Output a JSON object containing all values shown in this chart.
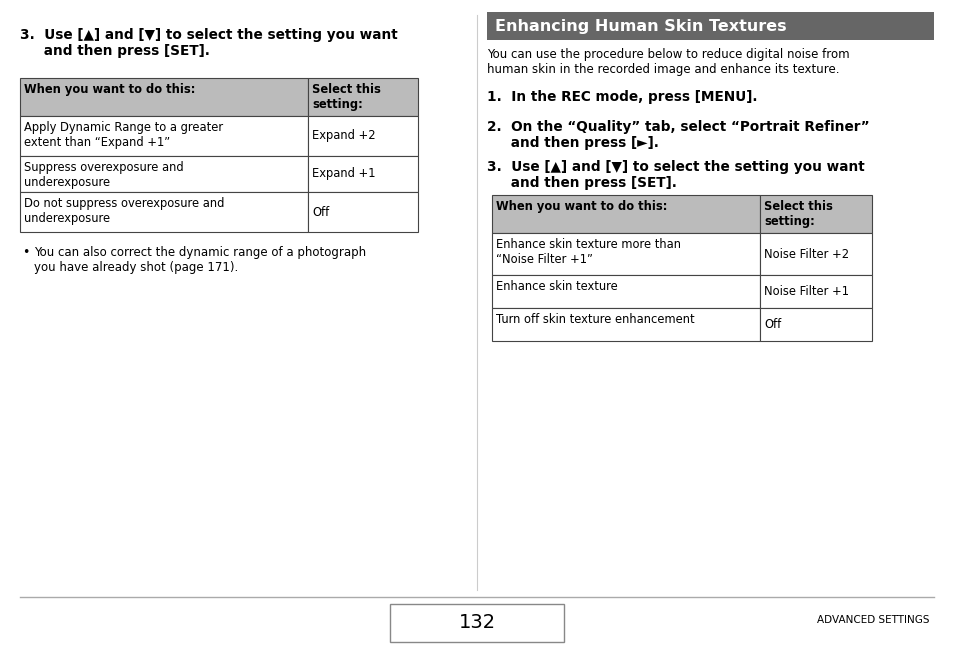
{
  "bg_color": "#ffffff",
  "header_bg": "#666666",
  "header_text_color": "#ffffff",
  "table_header_bg": "#bbbbbb",
  "table_border_color": "#444444",
  "text_color": "#000000",
  "divider_color": "#cccccc",
  "footer_line_color": "#aaaaaa",
  "left_step3_line1": "3.  Use [▲] and [▼] to select the setting you want",
  "left_step3_line2": "     and then press [SET].",
  "left_table_header_col1": "When you want to do this:",
  "left_table_header_col2": "Select this\nsetting:",
  "left_table_rows": [
    [
      "Apply Dynamic Range to a greater\nextent than “Expand +1”",
      "Expand +2"
    ],
    [
      "Suppress overexposure and\nunderexposure",
      "Expand +1"
    ],
    [
      "Do not suppress overexposure and\nunderexposure",
      "Off"
    ]
  ],
  "left_bullet_text": "You can also correct the dynamic range of a photograph\nyou have already shot (page 171).",
  "right_section_title": "Enhancing Human Skin Textures",
  "right_intro_line1": "You can use the procedure below to reduce digital noise from",
  "right_intro_line2": "human skin in the recorded image and enhance its texture.",
  "right_step1": "1.  In the REC mode, press [MENU].",
  "right_step2_line1": "2.  On the “Quality” tab, select “Portrait Refiner”",
  "right_step2_line2": "     and then press [►].",
  "right_step3_line1": "3.  Use [▲] and [▼] to select the setting you want",
  "right_step3_line2": "     and then press [SET].",
  "right_table_header_col1": "When you want to do this:",
  "right_table_header_col2": "Select this\nsetting:",
  "right_table_rows": [
    [
      "Enhance skin texture more than\n“Noise Filter +1”",
      "Noise Filter +2"
    ],
    [
      "Enhance skin texture",
      "Noise Filter +1"
    ],
    [
      "Turn off skin texture enhancement",
      "Off"
    ]
  ],
  "page_number": "132",
  "footer_right": "ADVANCED SETTINGS"
}
